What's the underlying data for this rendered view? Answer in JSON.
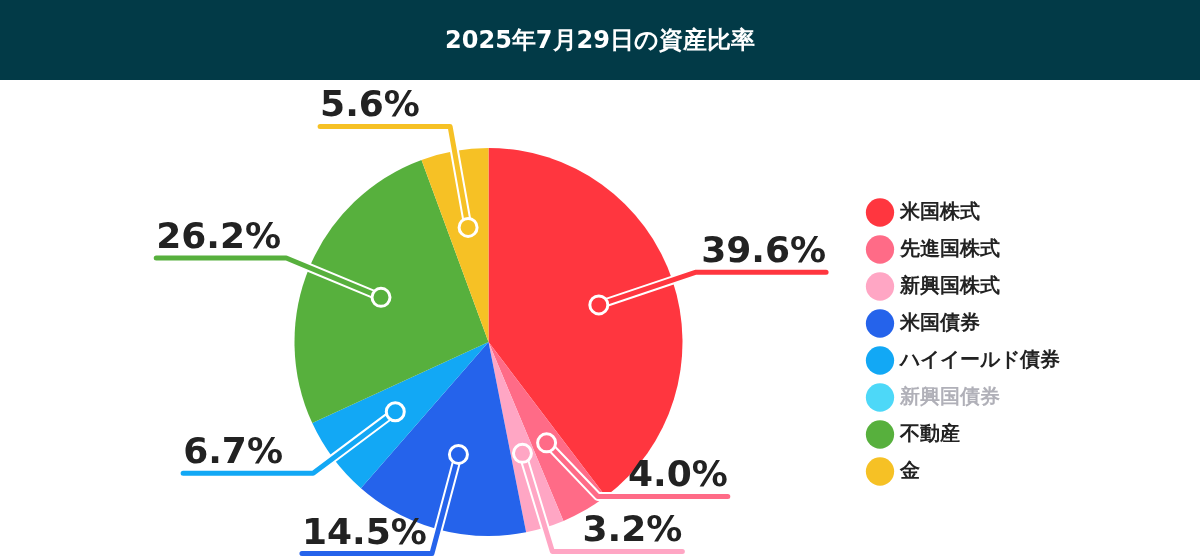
{
  "chart_data": {
    "type": "pie",
    "title": "2025年7月29日の資産比率",
    "categories": [
      "米国株式",
      "先進国株式",
      "新興国株式",
      "米国債券",
      "ハイイールド債券",
      "新興国債券",
      "不動産",
      "金"
    ],
    "values": [
      39.6,
      4.0,
      3.2,
      14.5,
      6.7,
      null,
      26.2,
      5.6
    ],
    "value_labels": [
      "39.6%",
      "4.0%",
      "3.2%",
      "14.5%",
      "6.7%",
      null,
      "26.2%",
      "5.6%"
    ],
    "colors": [
      "#ff363f",
      "#ff6b87",
      "#ffa6c4",
      "#2563eb",
      "#12a8f5",
      "#4dd8f8",
      "#57b03d",
      "#f6c125"
    ],
    "legend": "right"
  }
}
